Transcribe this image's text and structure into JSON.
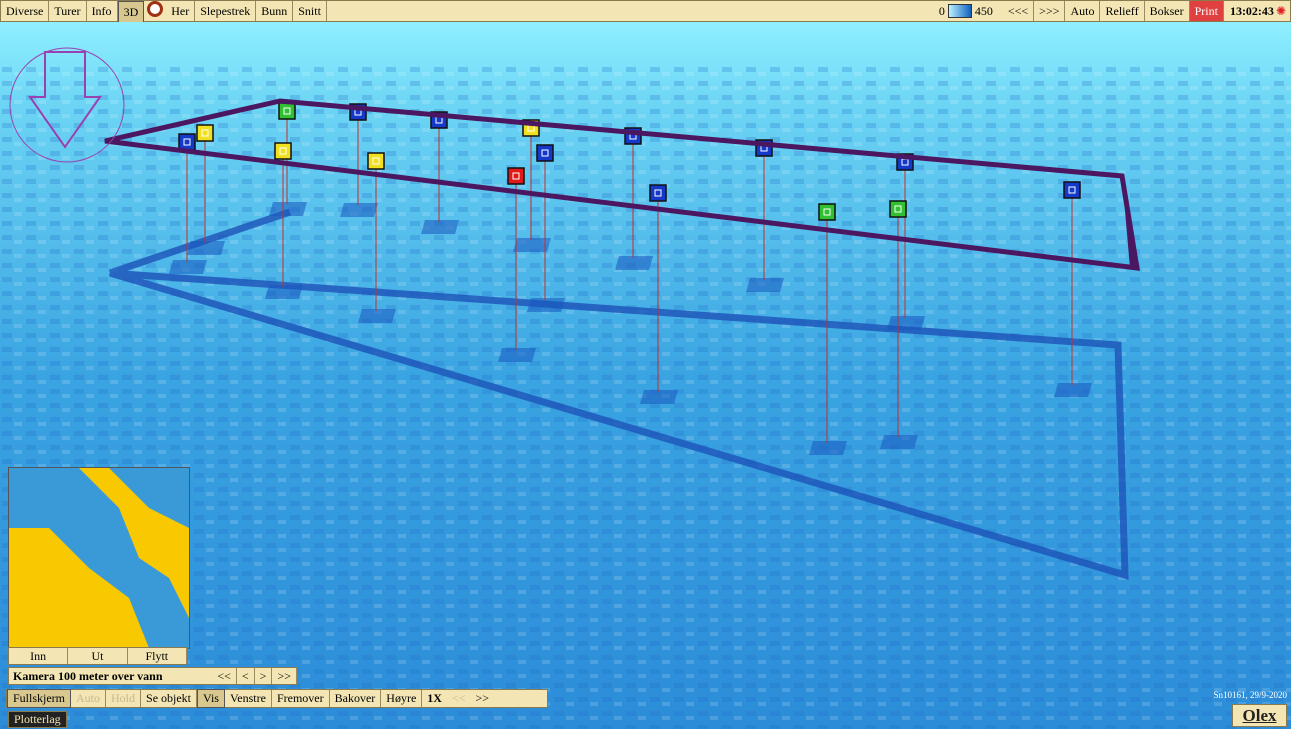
{
  "toolbar": {
    "left": [
      "Diverse",
      "Turer",
      "Info",
      "3D",
      "Her",
      "Slepestrek",
      "Bunn",
      "Snitt"
    ],
    "scale": {
      "min": 0,
      "max": 450
    },
    "right": [
      "<<<",
      ">>>",
      "Auto",
      "Relieff",
      "Bokser",
      "Print"
    ],
    "clock": "13:02:43"
  },
  "minimap": {
    "buttons": [
      "Inn",
      "Ut",
      "Flytt"
    ]
  },
  "camera": {
    "label": "Kamera 100 meter over vann",
    "buttons": [
      "<<",
      "<",
      ">",
      ">>"
    ]
  },
  "controls": {
    "buttons": [
      "Fullskjerm",
      "Auto",
      "Hold",
      "Se objekt",
      "Vis",
      "Venstre",
      "Fremover",
      "Bakover",
      "Høyre"
    ],
    "speed": "1X",
    "speed_buttons": [
      "<<",
      ">>"
    ]
  },
  "layer": "Plotterlag",
  "status": "Sn10161, 29/9-2020",
  "logo": "Olex"
}
